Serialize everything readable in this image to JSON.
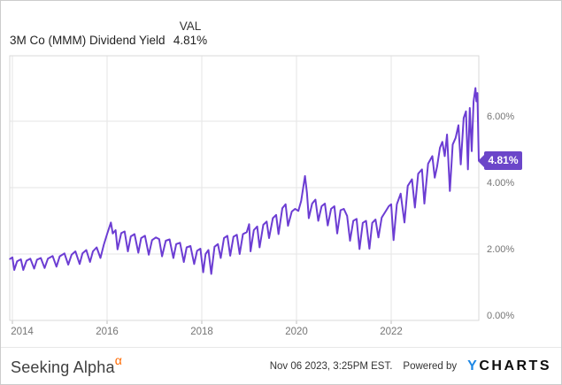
{
  "header": {
    "val_column": "VAL",
    "series_label": "3M Co (MMM) Dividend Yield",
    "val_value": "4.81%"
  },
  "badge": {
    "label": "4.81%"
  },
  "chart_data": {
    "type": "line",
    "title": "3M Co (MMM) Dividend Yield",
    "grid": true,
    "legend_position": "none",
    "y_axis": {
      "side": "right",
      "ticks": [
        0,
        2,
        4,
        6
      ],
      "tick_labels": [
        "0.00%",
        "2.00%",
        "4.00%",
        "6.00%"
      ],
      "range": [
        0,
        7.97
      ],
      "format": "percent"
    },
    "x_axis": {
      "ticks": [
        2014,
        2016,
        2018,
        2020,
        2022
      ],
      "tick_labels": [
        "2014",
        "2016",
        "2018",
        "2020",
        "2022"
      ],
      "range": [
        2013.95,
        2023.87
      ]
    },
    "last_value": 4.81,
    "last_value_label": "4.81%",
    "series": [
      {
        "name": "3M Co (MMM) Dividend Yield",
        "points": [
          [
            2013.95,
            1.85
          ],
          [
            2014.0,
            1.9
          ],
          [
            2014.04,
            1.52
          ],
          [
            2014.1,
            1.78
          ],
          [
            2014.18,
            1.84
          ],
          [
            2014.23,
            1.52
          ],
          [
            2014.3,
            1.8
          ],
          [
            2014.38,
            1.86
          ],
          [
            2014.46,
            1.56
          ],
          [
            2014.52,
            1.83
          ],
          [
            2014.6,
            1.88
          ],
          [
            2014.68,
            1.58
          ],
          [
            2014.75,
            1.86
          ],
          [
            2014.85,
            1.94
          ],
          [
            2014.93,
            1.62
          ],
          [
            2015.0,
            1.93
          ],
          [
            2015.1,
            2.02
          ],
          [
            2015.18,
            1.68
          ],
          [
            2015.25,
            1.98
          ],
          [
            2015.33,
            2.08
          ],
          [
            2015.42,
            1.7
          ],
          [
            2015.48,
            2.02
          ],
          [
            2015.56,
            2.12
          ],
          [
            2015.64,
            1.76
          ],
          [
            2015.7,
            2.08
          ],
          [
            2015.78,
            2.2
          ],
          [
            2015.86,
            1.88
          ],
          [
            2015.93,
            2.28
          ],
          [
            2016.0,
            2.6
          ],
          [
            2016.08,
            2.95
          ],
          [
            2016.12,
            2.62
          ],
          [
            2016.18,
            2.72
          ],
          [
            2016.22,
            2.14
          ],
          [
            2016.3,
            2.63
          ],
          [
            2016.37,
            2.68
          ],
          [
            2016.44,
            2.08
          ],
          [
            2016.5,
            2.53
          ],
          [
            2016.58,
            2.6
          ],
          [
            2016.66,
            2.04
          ],
          [
            2016.72,
            2.48
          ],
          [
            2016.8,
            2.55
          ],
          [
            2016.88,
            1.98
          ],
          [
            2016.95,
            2.42
          ],
          [
            2017.03,
            2.5
          ],
          [
            2017.1,
            2.45
          ],
          [
            2017.16,
            1.93
          ],
          [
            2017.24,
            2.4
          ],
          [
            2017.32,
            2.44
          ],
          [
            2017.4,
            1.88
          ],
          [
            2017.46,
            2.3
          ],
          [
            2017.54,
            2.34
          ],
          [
            2017.62,
            1.76
          ],
          [
            2017.68,
            2.2
          ],
          [
            2017.76,
            2.24
          ],
          [
            2017.84,
            1.7
          ],
          [
            2017.9,
            2.1
          ],
          [
            2017.97,
            2.16
          ],
          [
            2018.03,
            1.45
          ],
          [
            2018.08,
            2.0
          ],
          [
            2018.14,
            2.12
          ],
          [
            2018.2,
            1.4
          ],
          [
            2018.27,
            2.22
          ],
          [
            2018.34,
            2.3
          ],
          [
            2018.4,
            1.88
          ],
          [
            2018.47,
            2.48
          ],
          [
            2018.54,
            2.55
          ],
          [
            2018.6,
            1.95
          ],
          [
            2018.67,
            2.52
          ],
          [
            2018.74,
            2.58
          ],
          [
            2018.8,
            2.0
          ],
          [
            2018.87,
            2.6
          ],
          [
            2018.95,
            2.66
          ],
          [
            2019.0,
            2.9
          ],
          [
            2019.03,
            2.08
          ],
          [
            2019.1,
            2.72
          ],
          [
            2019.17,
            2.83
          ],
          [
            2019.22,
            2.2
          ],
          [
            2019.3,
            2.88
          ],
          [
            2019.37,
            2.98
          ],
          [
            2019.42,
            2.48
          ],
          [
            2019.5,
            3.08
          ],
          [
            2019.57,
            3.18
          ],
          [
            2019.62,
            2.6
          ],
          [
            2019.7,
            3.38
          ],
          [
            2019.77,
            3.5
          ],
          [
            2019.82,
            2.85
          ],
          [
            2019.9,
            3.28
          ],
          [
            2019.97,
            3.36
          ],
          [
            2020.04,
            3.3
          ],
          [
            2020.1,
            3.6
          ],
          [
            2020.18,
            4.35
          ],
          [
            2020.22,
            3.85
          ],
          [
            2020.26,
            3.08
          ],
          [
            2020.33,
            3.52
          ],
          [
            2020.4,
            3.64
          ],
          [
            2020.46,
            3.0
          ],
          [
            2020.53,
            3.44
          ],
          [
            2020.6,
            3.52
          ],
          [
            2020.66,
            2.86
          ],
          [
            2020.73,
            3.36
          ],
          [
            2020.8,
            3.44
          ],
          [
            2020.86,
            2.62
          ],
          [
            2020.93,
            3.32
          ],
          [
            2021.0,
            3.36
          ],
          [
            2021.07,
            3.15
          ],
          [
            2021.13,
            2.4
          ],
          [
            2021.2,
            3.0
          ],
          [
            2021.27,
            3.06
          ],
          [
            2021.33,
            2.15
          ],
          [
            2021.4,
            2.94
          ],
          [
            2021.47,
            3.0
          ],
          [
            2021.54,
            2.16
          ],
          [
            2021.6,
            2.94
          ],
          [
            2021.67,
            3.04
          ],
          [
            2021.73,
            2.5
          ],
          [
            2021.8,
            3.1
          ],
          [
            2021.88,
            3.28
          ],
          [
            2021.95,
            3.44
          ],
          [
            2022.0,
            3.5
          ],
          [
            2022.05,
            2.42
          ],
          [
            2022.12,
            3.5
          ],
          [
            2022.2,
            3.82
          ],
          [
            2022.28,
            2.95
          ],
          [
            2022.35,
            4.05
          ],
          [
            2022.44,
            4.25
          ],
          [
            2022.5,
            3.4
          ],
          [
            2022.57,
            4.42
          ],
          [
            2022.65,
            4.55
          ],
          [
            2022.7,
            3.52
          ],
          [
            2022.78,
            4.72
          ],
          [
            2022.87,
            4.95
          ],
          [
            2022.92,
            4.3
          ],
          [
            2022.97,
            4.64
          ],
          [
            2023.03,
            5.2
          ],
          [
            2023.08,
            5.38
          ],
          [
            2023.13,
            4.95
          ],
          [
            2023.18,
            5.6
          ],
          [
            2023.24,
            3.9
          ],
          [
            2023.3,
            5.3
          ],
          [
            2023.36,
            5.5
          ],
          [
            2023.42,
            5.88
          ],
          [
            2023.47,
            4.7
          ],
          [
            2023.53,
            6.1
          ],
          [
            2023.58,
            6.3
          ],
          [
            2023.62,
            4.55
          ],
          [
            2023.66,
            6.4
          ],
          [
            2023.7,
            5.1
          ],
          [
            2023.74,
            6.6
          ],
          [
            2023.78,
            7.0
          ],
          [
            2023.8,
            6.6
          ],
          [
            2023.82,
            6.85
          ],
          [
            2023.85,
            4.81
          ]
        ]
      }
    ]
  },
  "colors": {
    "line": "#6c3dd3",
    "badge": "#6b46c9",
    "ycharts_blue": "#1e88e5",
    "alpha_orange": "#ff6a00"
  },
  "footer": {
    "brand": "Seeking Alpha",
    "brand_sup": "α",
    "timestamp": "Nov 06 2023, 3:25PM EST.",
    "powered_by": "Powered by",
    "ycharts_y": "Y",
    "ycharts_rest": "CHARTS"
  }
}
